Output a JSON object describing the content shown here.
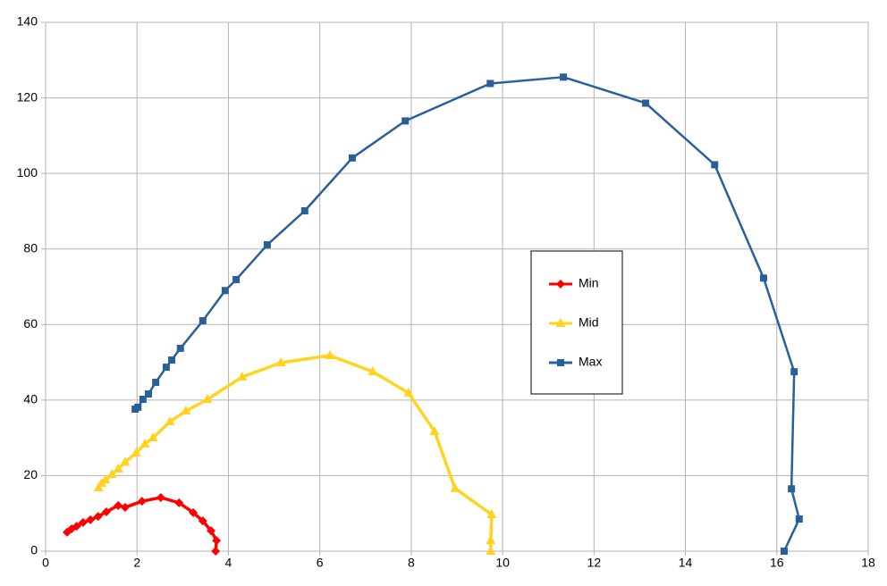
{
  "chart_data": {
    "type": "line",
    "xlim": [
      0,
      18
    ],
    "xticks": [
      0,
      2,
      4,
      6,
      8,
      10,
      12,
      14,
      16,
      18
    ],
    "ylim": [
      0,
      140
    ],
    "yticks": [
      0,
      20,
      40,
      60,
      80,
      100,
      120,
      140
    ],
    "grid": true,
    "series": [
      {
        "name": "Min",
        "color": "#ff0000",
        "marker": "diamond",
        "x": [
          3.72,
          3.74,
          3.62,
          3.44,
          3.23,
          2.92,
          2.52,
          2.11,
          1.74,
          1.59,
          1.33,
          1.15,
          0.98,
          0.82,
          0.68,
          0.57,
          0.47
        ],
        "values": [
          0,
          2.8,
          5.4,
          8.0,
          10.2,
          12.8,
          14.2,
          13.2,
          11.6,
          12.1,
          10.4,
          9.2,
          8.3,
          7.6,
          6.6,
          5.9,
          5.0
        ]
      },
      {
        "name": "Mid",
        "color": "#ffd320",
        "marker": "triangle",
        "x": [
          9.74,
          9.74,
          9.76,
          8.96,
          8.51,
          7.94,
          7.16,
          6.22,
          5.15,
          4.3,
          3.54,
          3.07,
          2.72,
          2.35,
          2.17,
          1.98,
          1.74,
          1.59,
          1.45,
          1.31,
          1.23,
          1.16
        ],
        "values": [
          0,
          2.8,
          9.7,
          16.6,
          31.7,
          41.9,
          47.5,
          51.8,
          49.9,
          46.1,
          40.2,
          37.1,
          34.3,
          30.0,
          28.4,
          26.0,
          23.6,
          21.8,
          20.3,
          18.9,
          18.0,
          16.8
        ]
      },
      {
        "name": "Max",
        "color": "#2a6099",
        "marker": "square",
        "x": [
          16.16,
          16.49,
          16.32,
          16.38,
          15.71,
          14.64,
          13.13,
          11.33,
          9.73,
          7.87,
          6.71,
          5.67,
          4.85,
          4.17,
          3.93,
          3.44,
          2.95,
          2.76,
          2.64,
          2.41,
          2.25,
          2.13,
          2.02,
          1.96
        ],
        "values": [
          0,
          8.5,
          16.5,
          47.5,
          72.3,
          102.3,
          118.6,
          125.5,
          123.8,
          113.9,
          104.1,
          90.1,
          81.1,
          71.9,
          69.0,
          61.0,
          53.7,
          50.6,
          48.7,
          44.7,
          41.6,
          40.2,
          38.1,
          37.6
        ]
      }
    ]
  }
}
